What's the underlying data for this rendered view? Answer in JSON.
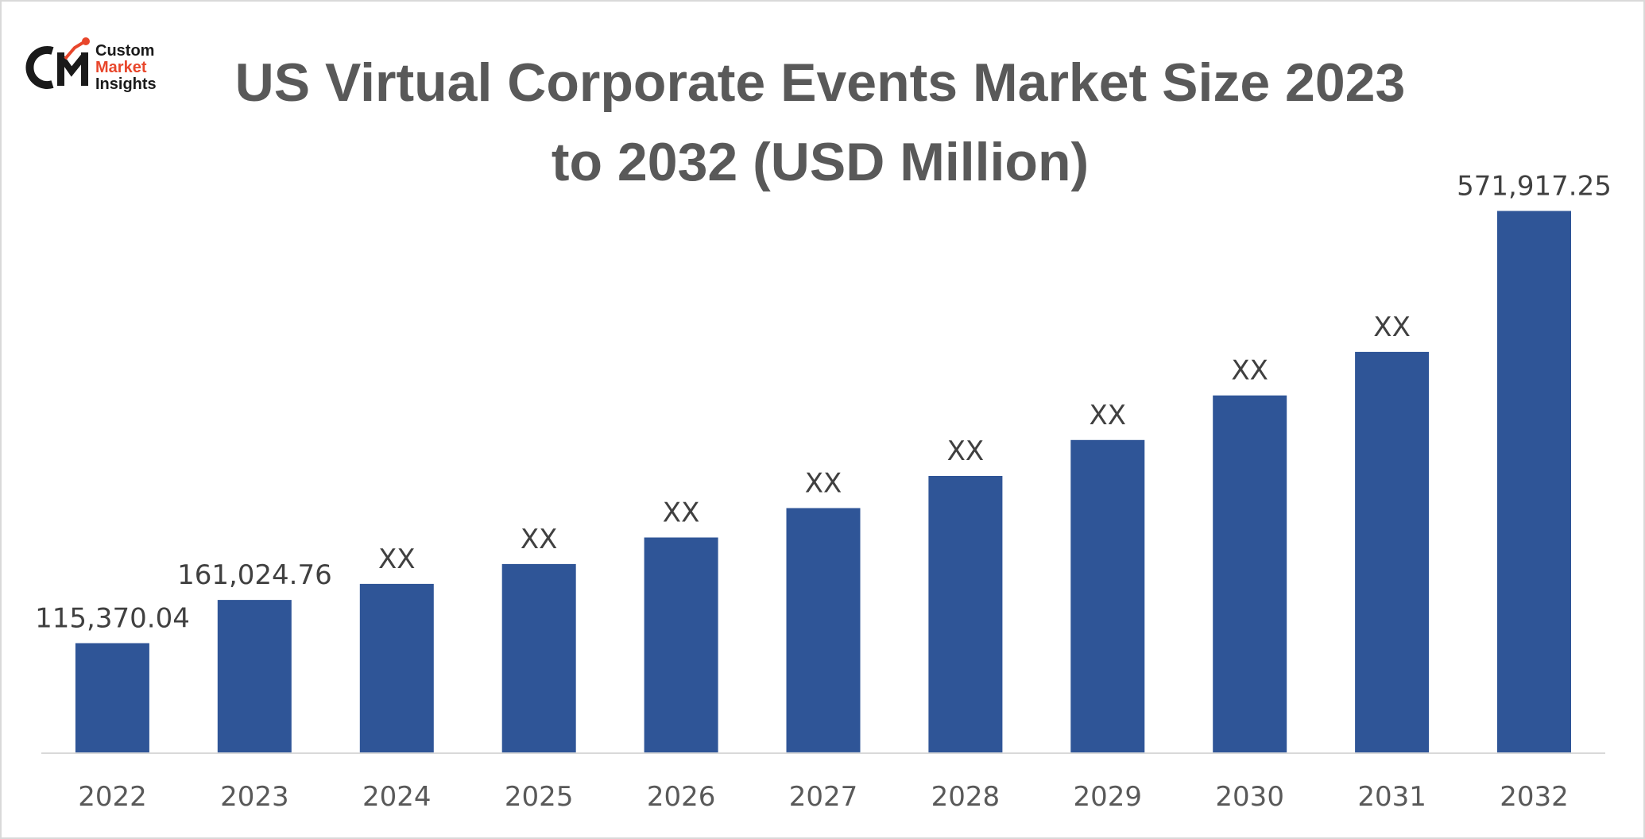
{
  "logo": {
    "monogram": "CMI",
    "line1": "Custom",
    "line2": "Market",
    "line3": "Insights",
    "colors": {
      "dark": "#1a1a1a",
      "accent": "#e8462b"
    }
  },
  "chart_data": {
    "type": "bar",
    "title": "US Virtual Corporate Events Market Size 2023 to 2032 (USD Million)",
    "title_lines": [
      "US Virtual Corporate Events Market Size 2023",
      "to 2032 (USD Million)"
    ],
    "xlabel": "",
    "ylabel": "",
    "categories": [
      "2022",
      "2023",
      "2024",
      "2025",
      "2026",
      "2027",
      "2028",
      "2029",
      "2030",
      "2031",
      "2032"
    ],
    "values": [
      115370.04,
      161024.76,
      178000,
      199000,
      227000,
      258000,
      292000,
      330000,
      377000,
      423000,
      571917.25
    ],
    "data_labels": [
      "115,370.04",
      "161,024.76",
      "XX",
      "XX",
      "XX",
      "XX",
      "XX",
      "XX",
      "XX",
      "XX",
      "571,917.25"
    ],
    "ylim": [
      0,
      600000
    ],
    "grid": false,
    "legend": "none",
    "bar_color": "#2f5597",
    "axis_color": "#d9d9d9"
  }
}
